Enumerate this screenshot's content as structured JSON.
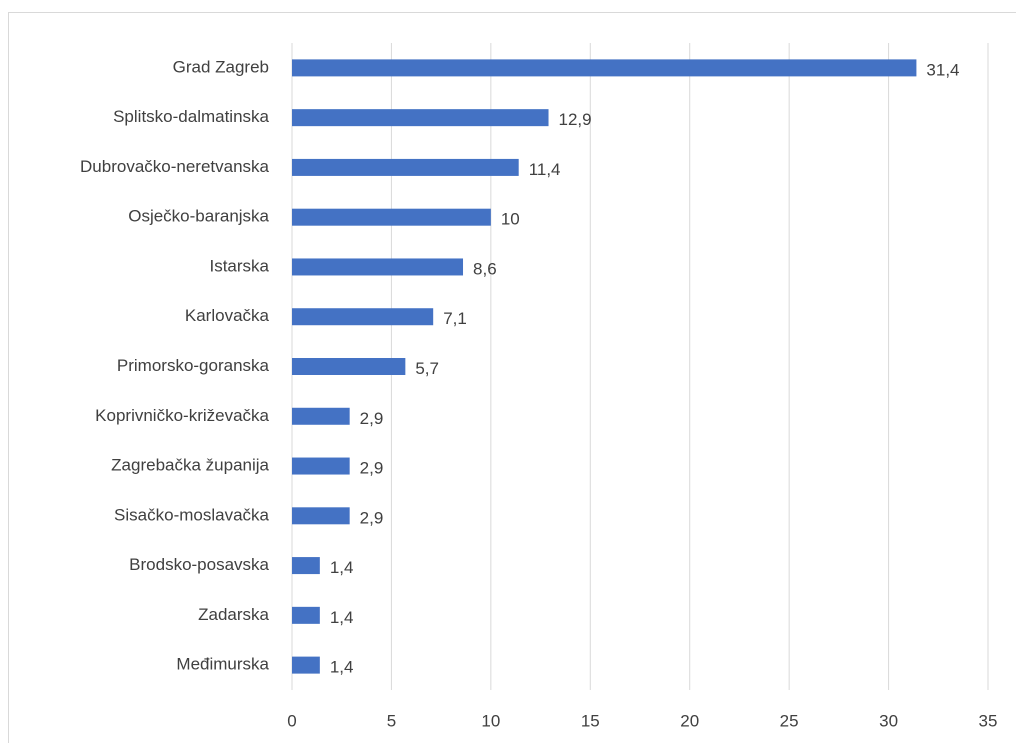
{
  "chart_data": {
    "type": "barh",
    "categories": [
      "Grad Zagreb",
      "Splitsko-dalmatinska",
      "Dubrovačko-neretvanska",
      "Osječko-baranjska",
      "Istarska",
      "Karlovačka",
      "Primorsko-goranska",
      "Koprivničko-križevačka",
      "Zagrebačka županija",
      "Sisačko-moslavačka",
      "Brodsko-posavska",
      "Zadarska",
      "Međimurska"
    ],
    "values": [
      31.4,
      12.9,
      11.4,
      10,
      8.6,
      7.1,
      5.7,
      2.9,
      2.9,
      2.9,
      1.4,
      1.4,
      1.4
    ],
    "value_labels": [
      "31,4",
      "12,9",
      "11,4",
      "10",
      "8,6",
      "7,1",
      "5,7",
      "2,9",
      "2,9",
      "2,9",
      "1,4",
      "1,4",
      "1,4"
    ],
    "color": "#4472c4",
    "xlim": [
      0,
      35
    ],
    "xticks": [
      0,
      5,
      10,
      15,
      20,
      25,
      30,
      35
    ],
    "grid": true
  }
}
